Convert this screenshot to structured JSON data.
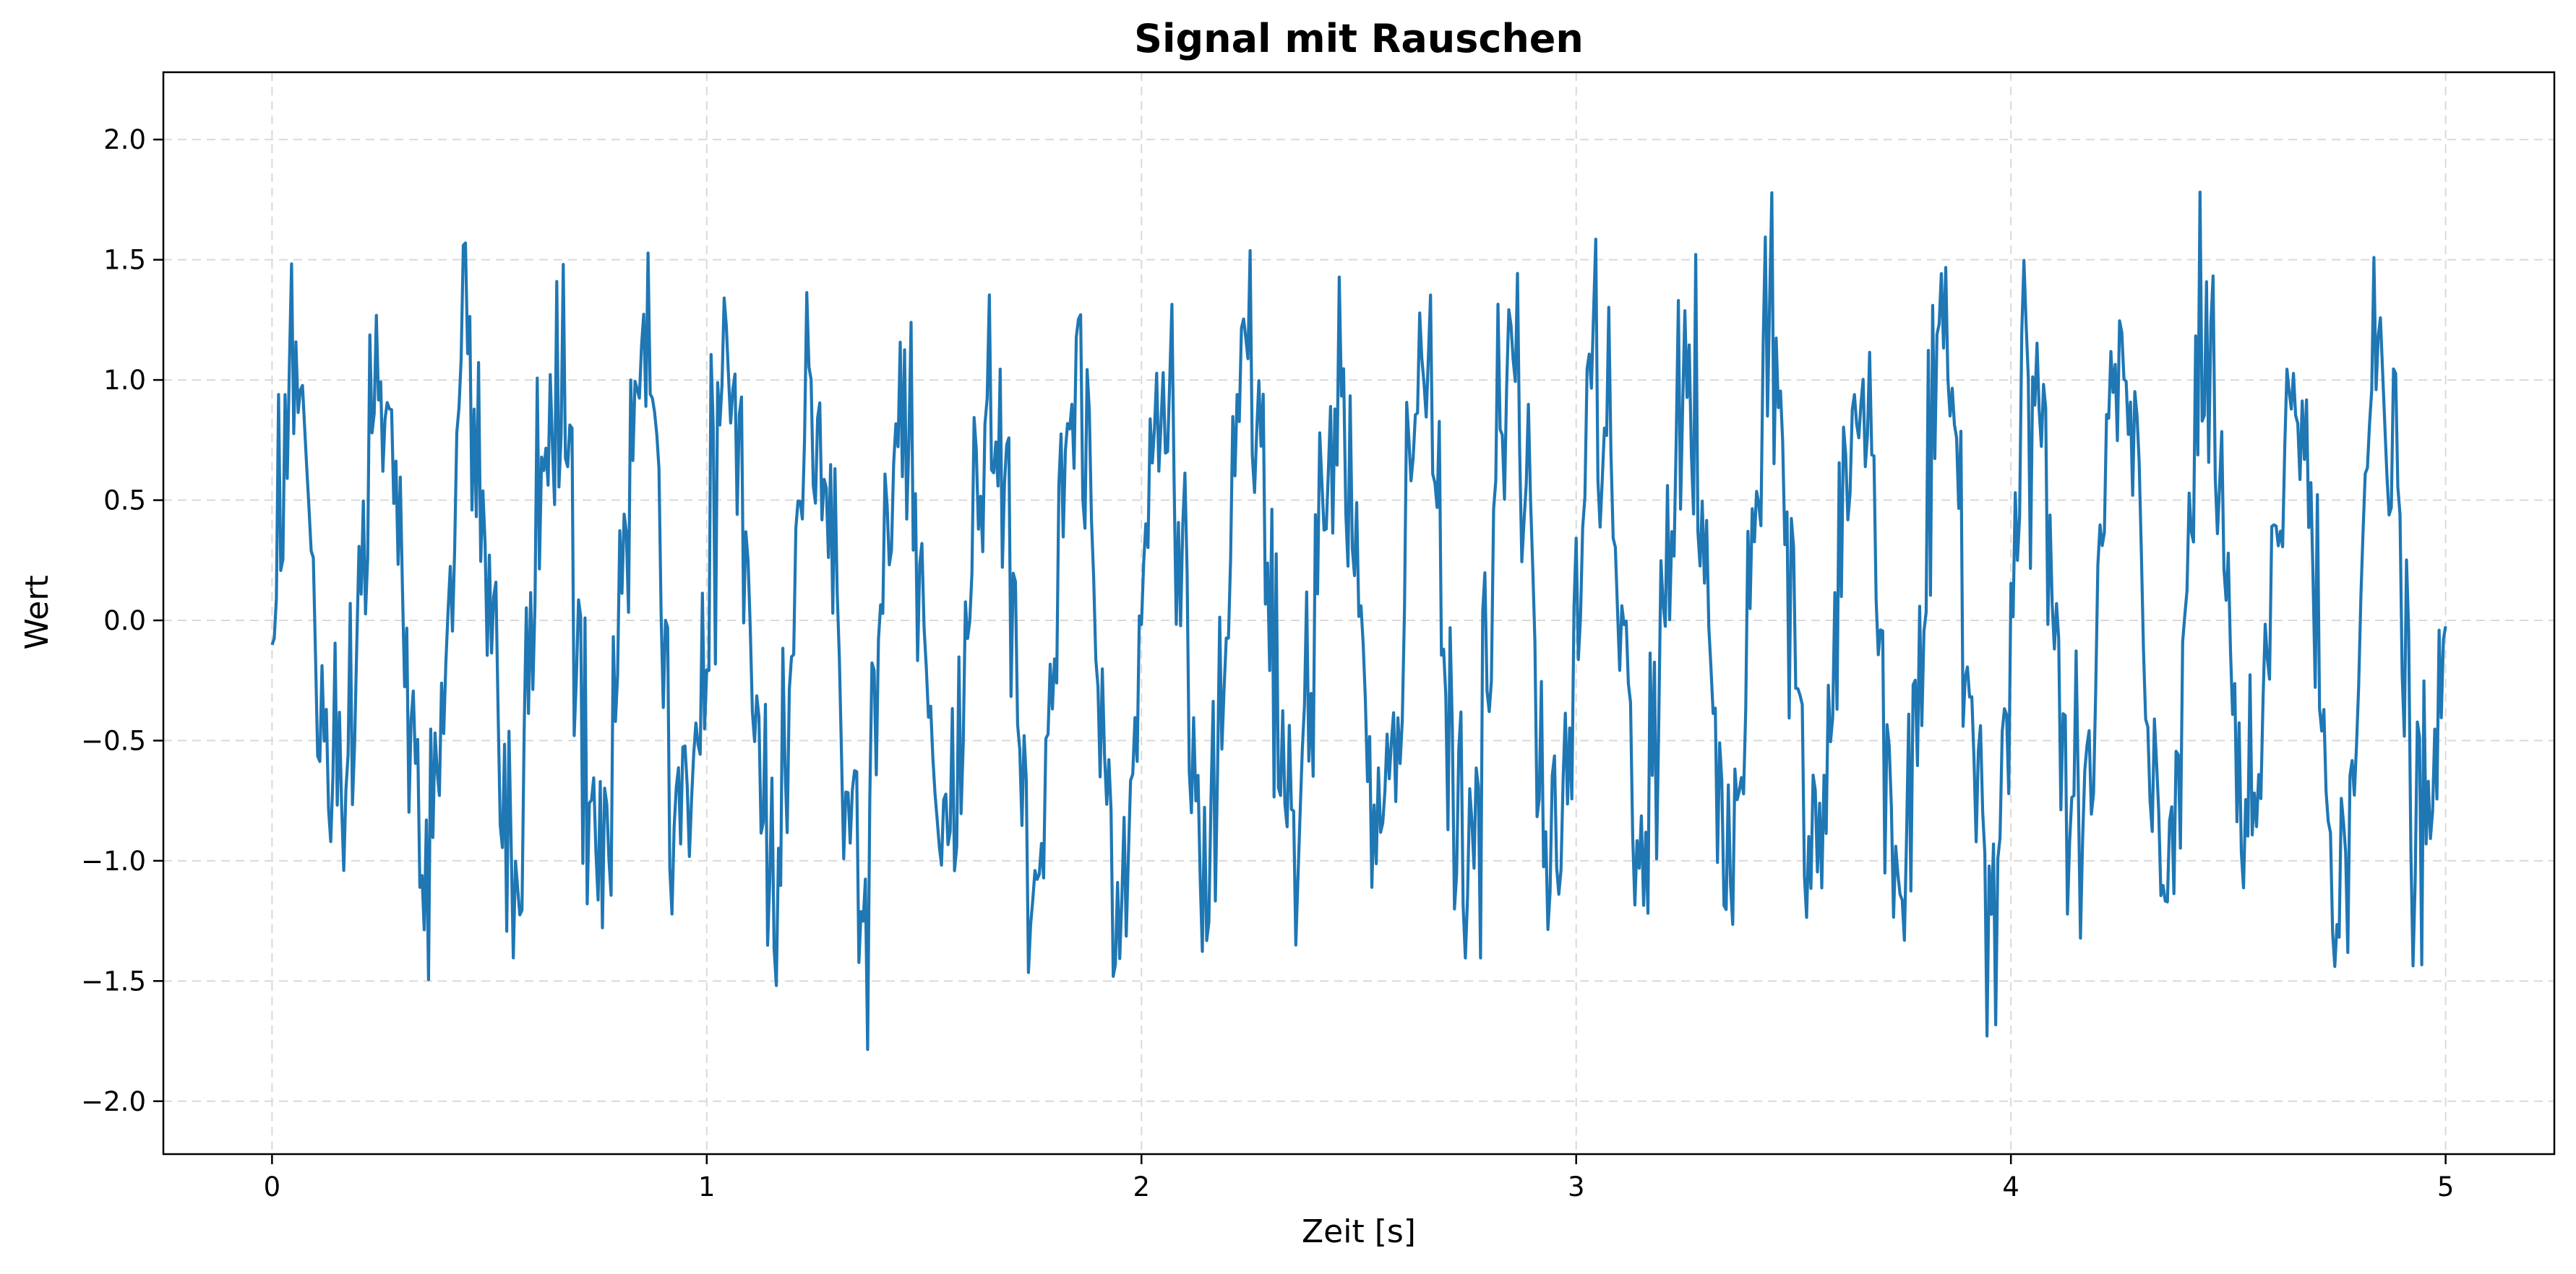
{
  "chart_data": {
    "type": "line",
    "title": "Signal mit Rauschen",
    "xlabel": "Zeit [s]",
    "ylabel": "Wert",
    "xlim": [
      -0.25,
      5.25
    ],
    "ylim": [
      -2.22,
      2.28
    ],
    "xticks": [
      0,
      1,
      2,
      3,
      4,
      5
    ],
    "yticks": [
      -2.0,
      -1.5,
      -1.0,
      -0.5,
      0.0,
      0.5,
      1.0,
      1.5,
      2.0
    ],
    "xtick_labels": [
      "0",
      "1",
      "2",
      "3",
      "4",
      "5"
    ],
    "ytick_labels": [
      "−2.0",
      "−1.5",
      "−1.0",
      "−0.5",
      "0.0",
      "0.5",
      "1.0",
      "1.5",
      "2.0"
    ],
    "grid": true,
    "grid_style": "dashed",
    "legend": "none",
    "series": [
      {
        "color": "#1f77b4",
        "x_range": [
          0,
          5
        ],
        "samples": 1001,
        "signal_frequency_hz": 5,
        "signal_amplitude": 1.0,
        "noise_std": 0.3,
        "y_min": -2.02,
        "y_max": 2.07
      }
    ]
  }
}
